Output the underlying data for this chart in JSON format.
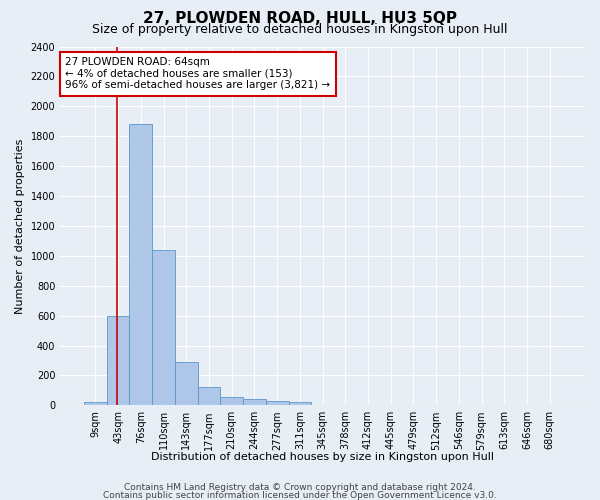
{
  "title": "27, PLOWDEN ROAD, HULL, HU3 5QP",
  "subtitle": "Size of property relative to detached houses in Kingston upon Hull",
  "xlabel": "Distribution of detached houses by size in Kingston upon Hull",
  "ylabel": "Number of detached properties",
  "footer_lines": [
    "Contains HM Land Registry data © Crown copyright and database right 2024.",
    "Contains public sector information licensed under the Open Government Licence v3.0."
  ],
  "bin_labels": [
    "9sqm",
    "43sqm",
    "76sqm",
    "110sqm",
    "143sqm",
    "177sqm",
    "210sqm",
    "244sqm",
    "277sqm",
    "311sqm",
    "345sqm",
    "378sqm",
    "412sqm",
    "445sqm",
    "479sqm",
    "512sqm",
    "546sqm",
    "579sqm",
    "613sqm",
    "646sqm",
    "680sqm"
  ],
  "bar_values": [
    20,
    600,
    1880,
    1040,
    290,
    120,
    55,
    40,
    30,
    20,
    0,
    0,
    0,
    0,
    0,
    0,
    0,
    0,
    0,
    0,
    0
  ],
  "bar_color": "#aec6e8",
  "bar_edge_color": "#5a96c8",
  "vline_x": 1.45,
  "vline_color": "#cc0000",
  "annotation_text": "27 PLOWDEN ROAD: 64sqm\n← 4% of detached houses are smaller (153)\n96% of semi-detached houses are larger (3,821) →",
  "annotation_box_facecolor": "#ffffff",
  "annotation_box_edgecolor": "#cc0000",
  "ylim_max": 2400,
  "ytick_step": 200,
  "bg_color": "#e8eef5",
  "grid_color": "#ffffff",
  "title_fontsize": 11,
  "subtitle_fontsize": 9,
  "axis_label_fontsize": 8,
  "tick_fontsize": 7,
  "annotation_fontsize": 7.5,
  "footer_fontsize": 6.5
}
